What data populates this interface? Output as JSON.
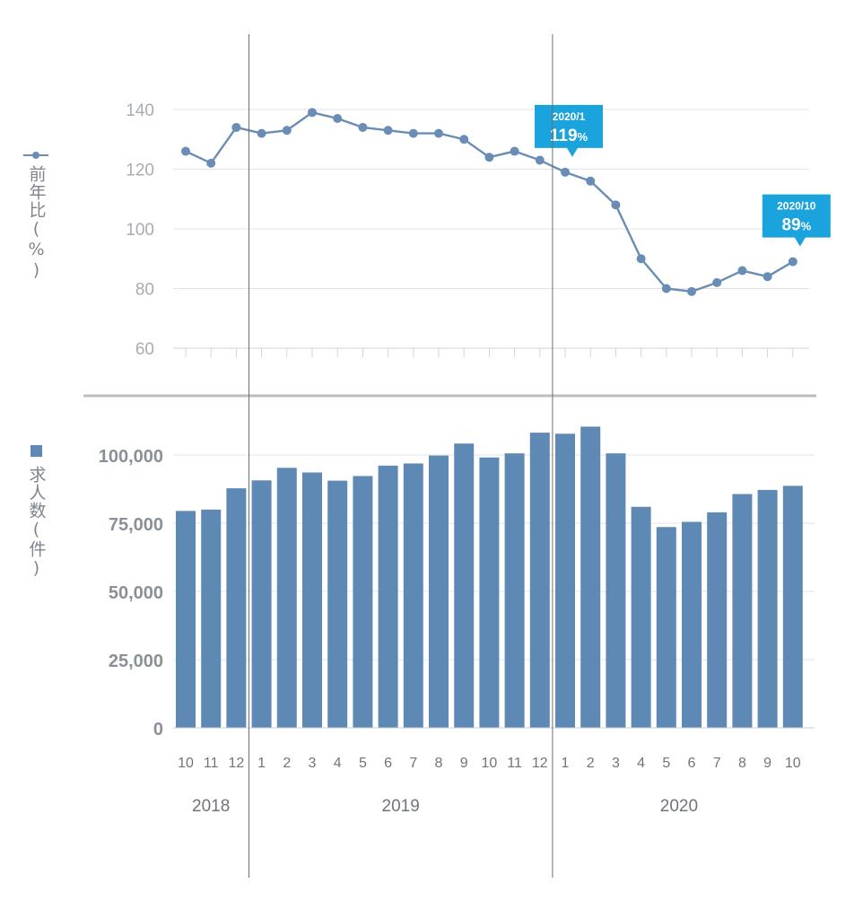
{
  "chart_data": [
    {
      "type": "line",
      "ylabel": "前年比(%)",
      "ylim": [
        60,
        140
      ],
      "yticks": [
        60,
        80,
        100,
        120,
        140
      ],
      "x": [
        "2018-10",
        "2018-11",
        "2018-12",
        "2019-01",
        "2019-02",
        "2019-03",
        "2019-04",
        "2019-05",
        "2019-06",
        "2019-07",
        "2019-08",
        "2019-09",
        "2019-10",
        "2019-11",
        "2019-12",
        "2020-01",
        "2020-02",
        "2020-03",
        "2020-04",
        "2020-05",
        "2020-06",
        "2020-07",
        "2020-08",
        "2020-09",
        "2020-10"
      ],
      "values": [
        126,
        122,
        134,
        132,
        133,
        139,
        137,
        134,
        133,
        132,
        132,
        130,
        124,
        126,
        123,
        119,
        116,
        108,
        90,
        80,
        79,
        82,
        86,
        84,
        89
      ],
      "callouts": [
        {
          "index": 15,
          "date": "2020/1",
          "value": "119",
          "unit": "%"
        },
        {
          "index": 24,
          "date": "2020/10",
          "value": "89",
          "unit": "%"
        }
      ],
      "grid": true
    },
    {
      "type": "bar",
      "ylabel": "求人数(件)",
      "ylim": [
        0,
        125000
      ],
      "ytick_values": [
        0,
        25000,
        50000,
        75000,
        100000
      ],
      "ytick_labels": [
        "0",
        "25,000",
        "50,000",
        "75,000",
        "100,000"
      ],
      "categories": [
        "10",
        "11",
        "12",
        "1",
        "2",
        "3",
        "4",
        "5",
        "6",
        "7",
        "8",
        "9",
        "10",
        "11",
        "12",
        "1",
        "2",
        "3",
        "4",
        "5",
        "6",
        "7",
        "8",
        "9",
        "10"
      ],
      "years": [
        {
          "label": "2018",
          "start": 0,
          "end": 2
        },
        {
          "label": "2019",
          "start": 3,
          "end": 14
        },
        {
          "label": "2020",
          "start": 15,
          "end": 24
        }
      ],
      "values": [
        79500,
        80000,
        87800,
        90700,
        95300,
        93600,
        90600,
        92300,
        96100,
        96900,
        99800,
        104200,
        99100,
        100600,
        108200,
        107800,
        110400,
        100600,
        81000,
        73600,
        75500,
        79000,
        85700,
        87200,
        88700
      ],
      "grid": true
    }
  ],
  "colors": {
    "line": "#6a8db5",
    "bar": "#5f89b5",
    "callout": "#1aa3dc",
    "grid": "#dfe3e8",
    "axis_text_top": "#a7acb3",
    "axis_text_bottom": "#8a9098",
    "divider": "#6b6f74"
  }
}
